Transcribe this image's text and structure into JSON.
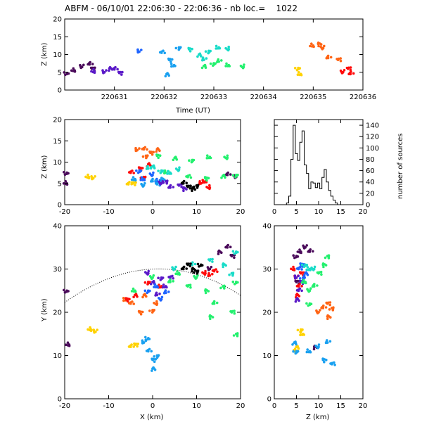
{
  "header": {
    "title": "ABFM - 06/10/01 22:06:30 - 22:06:36 - nb loc.=    1022"
  },
  "colors": {
    "black": "#000000",
    "dark_purple": "#4a0a5a",
    "purple": "#5a19c8",
    "blue": "#1e64ff",
    "sky": "#19a0f0",
    "cyan": "#19dcc8",
    "green": "#23f06e",
    "yellow": "#ffd200",
    "orange": "#ff6414",
    "red": "#ff0a0a"
  },
  "chart_data": [
    {
      "id": "time-height",
      "type": "scatter",
      "xlabel": "Time (UT)",
      "ylabel": "Z (km)",
      "xlim": [
        220630,
        220636
      ],
      "ylim": [
        0,
        20
      ],
      "xticks": [
        "220631",
        "220632",
        "220633",
        "220634",
        "220635",
        "220636"
      ],
      "yticks": [
        "0",
        "5",
        "10",
        "15",
        "20"
      ],
      "series": [
        {
          "color": "dark_purple",
          "points": [
            [
              220630.05,
              4.8
            ],
            [
              220630.2,
              5.5
            ],
            [
              220630.35,
              6.5
            ],
            [
              220630.5,
              7.2
            ],
            [
              220630.55,
              6.0
            ]
          ]
        },
        {
          "color": "purple",
          "points": [
            [
              220630.6,
              5.2
            ],
            [
              220630.8,
              5.0
            ],
            [
              220631.0,
              5.8
            ],
            [
              220631.1,
              4.8
            ],
            [
              220630.9,
              6.1
            ]
          ]
        },
        {
          "color": "blue",
          "points": [
            [
              220631.5,
              10.8
            ]
          ]
        },
        {
          "color": "sky",
          "points": [
            [
              220631.95,
              10.5
            ],
            [
              220632.1,
              8.5
            ],
            [
              220632.05,
              4.5
            ],
            [
              220632.3,
              12.0
            ],
            [
              220632.2,
              7.0
            ]
          ]
        },
        {
          "color": "cyan",
          "points": [
            [
              220632.5,
              11.5
            ],
            [
              220632.7,
              10.0
            ],
            [
              220632.9,
              11.0
            ],
            [
              220633.1,
              12.0
            ],
            [
              220633.3,
              11.5
            ],
            [
              220632.8,
              8.5
            ]
          ]
        },
        {
          "color": "green",
          "points": [
            [
              220632.8,
              6.8
            ],
            [
              220633.0,
              7.5
            ],
            [
              220633.3,
              7.0
            ],
            [
              220633.6,
              6.5
            ],
            [
              220633.1,
              8.0
            ]
          ]
        },
        {
          "color": "yellow",
          "points": [
            [
              220634.7,
              6.2
            ],
            [
              220634.75,
              4.5
            ]
          ]
        },
        {
          "color": "orange",
          "points": [
            [
              220635.0,
              12.5
            ],
            [
              220635.2,
              11.8
            ],
            [
              220635.3,
              9.0
            ],
            [
              220635.5,
              8.5
            ],
            [
              220635.1,
              13.0
            ]
          ]
        },
        {
          "color": "red",
          "points": [
            [
              220635.6,
              5.0
            ],
            [
              220635.75,
              4.5
            ],
            [
              220635.7,
              6.0
            ]
          ]
        }
      ]
    },
    {
      "id": "x-z",
      "type": "scatter",
      "ylabel": "Z (km)",
      "xlim": [
        -20,
        20
      ],
      "ylim": [
        0,
        20
      ],
      "xticks": [
        "-20",
        "-10",
        "0",
        "10",
        "20"
      ],
      "yticks": [
        "0",
        "5",
        "10",
        "15",
        "20"
      ],
      "series": [
        {
          "color": "dark_purple",
          "points": [
            [
              -19.5,
              7.5
            ],
            [
              -19.5,
              5.0
            ],
            [
              19,
              6.5
            ],
            [
              17,
              7.0
            ]
          ]
        },
        {
          "color": "yellow",
          "points": [
            [
              -14.5,
              6.5
            ],
            [
              -13.5,
              6.2
            ],
            [
              -5.5,
              4.8
            ],
            [
              -4.5,
              5.0
            ]
          ]
        },
        {
          "color": "orange",
          "points": [
            [
              -3.5,
              12.8
            ],
            [
              -2.0,
              13.0
            ],
            [
              -0.5,
              12.2
            ],
            [
              1.0,
              13.0
            ],
            [
              -1.5,
              11.5
            ]
          ]
        },
        {
          "color": "red",
          "points": [
            [
              -5,
              7.5
            ],
            [
              -3,
              8.5
            ],
            [
              -1,
              9.5
            ],
            [
              -2,
              6.5
            ],
            [
              12,
              5.5
            ],
            [
              13,
              4.0
            ],
            [
              11,
              5.0
            ]
          ]
        },
        {
          "color": "green",
          "points": [
            [
              1,
              11.5
            ],
            [
              5,
              11.0
            ],
            [
              9,
              10.5
            ],
            [
              13,
              11.2
            ],
            [
              17,
              11.0
            ],
            [
              3,
              7.5
            ],
            [
              8,
              6.5
            ],
            [
              12,
              6.2
            ],
            [
              16,
              6.8
            ],
            [
              19,
              7.0
            ]
          ]
        },
        {
          "color": "cyan",
          "points": [
            [
              0,
              9.0
            ],
            [
              2,
              8.0
            ],
            [
              4,
              7.5
            ],
            [
              6,
              8.2
            ],
            [
              -1,
              8.5
            ]
          ]
        },
        {
          "color": "blue",
          "points": [
            [
              -3,
              8.0
            ],
            [
              -2,
              6.0
            ],
            [
              0,
              7.0
            ],
            [
              1,
              5.5
            ]
          ]
        },
        {
          "color": "sky",
          "points": [
            [
              -4,
              6.0
            ],
            [
              -2,
              4.5
            ],
            [
              0,
              5.5
            ],
            [
              1,
              4.8
            ],
            [
              2,
              6.0
            ]
          ]
        },
        {
          "color": "purple",
          "points": [
            [
              2,
              5.0
            ],
            [
              4,
              4.0
            ],
            [
              6,
              4.5
            ],
            [
              7,
              3.8
            ],
            [
              3,
              5.5
            ]
          ]
        },
        {
          "color": "black",
          "points": [
            [
              7,
              5.0
            ],
            [
              8,
              4.2
            ],
            [
              9,
              3.8
            ],
            [
              10,
              4.5
            ]
          ]
        }
      ]
    },
    {
      "id": "height-histogram",
      "type": "bar",
      "ylabel": "number of sources",
      "xlim": [
        0,
        20
      ],
      "ylim": [
        0,
        150
      ],
      "xticks": [
        "0",
        "5",
        "10",
        "15",
        "20"
      ],
      "yticks": [
        "0",
        "20",
        "40",
        "60",
        "80",
        "100",
        "120",
        "140"
      ],
      "categories": [
        2.5,
        3,
        3.5,
        4,
        4.5,
        5,
        5.5,
        6,
        6.5,
        7,
        7.5,
        8,
        8.5,
        9,
        9.5,
        10,
        10.5,
        11,
        11.5,
        12,
        12.5,
        13,
        13.5,
        14,
        14.5
      ],
      "values": [
        0,
        3,
        15,
        80,
        140,
        90,
        78,
        110,
        130,
        70,
        55,
        28,
        40,
        38,
        30,
        38,
        28,
        48,
        62,
        40,
        25,
        15,
        8,
        3,
        0
      ]
    },
    {
      "id": "x-y",
      "type": "scatter",
      "xlabel": "X (km)",
      "ylabel": "Y (km)",
      "xlim": [
        -20,
        20
      ],
      "ylim": [
        0,
        40
      ],
      "xticks": [
        "-20",
        "-10",
        "0",
        "10",
        "20"
      ],
      "yticks": [
        "0",
        "10",
        "20",
        "30",
        "40"
      ],
      "series": [
        {
          "color": "dark_purple",
          "points": [
            [
              -19.5,
              25
            ],
            [
              -19.0,
              12.5
            ],
            [
              13,
              30
            ],
            [
              17,
              35
            ],
            [
              18,
              33
            ],
            [
              15,
              34
            ]
          ]
        },
        {
          "color": "yellow",
          "points": [
            [
              -14,
              16
            ],
            [
              -13,
              15.5
            ],
            [
              -5,
              12
            ],
            [
              -4,
              12.5
            ]
          ]
        },
        {
          "color": "sky",
          "points": [
            [
              -2,
              13
            ],
            [
              -1,
              11
            ],
            [
              0,
              9
            ],
            [
              0,
              7
            ],
            [
              1,
              10
            ],
            [
              -1,
              14
            ]
          ]
        },
        {
          "color": "orange",
          "points": [
            [
              -5,
              22
            ],
            [
              -3,
              20
            ],
            [
              -2,
              24
            ],
            [
              0,
              20.5
            ],
            [
              -6,
              23
            ],
            [
              1,
              22
            ]
          ]
        },
        {
          "color": "red",
          "points": [
            [
              -6,
              23
            ],
            [
              -4,
              24
            ],
            [
              -1,
              27
            ],
            [
              2,
              26
            ],
            [
              12,
              29
            ],
            [
              13,
              28.5
            ],
            [
              14,
              29.5
            ]
          ]
        },
        {
          "color": "purple",
          "points": [
            [
              0,
              27
            ],
            [
              2,
              28
            ],
            [
              3,
              26
            ],
            [
              -1,
              29
            ],
            [
              1,
              24
            ],
            [
              4,
              28
            ]
          ]
        },
        {
          "color": "blue",
          "points": [
            [
              -1,
              25
            ],
            [
              1,
              26
            ],
            [
              2,
              23
            ],
            [
              3,
              24.5
            ]
          ]
        },
        {
          "color": "green",
          "points": [
            [
              -4,
              25
            ],
            [
              0,
              28
            ],
            [
              4,
              27
            ],
            [
              8,
              26
            ],
            [
              12,
              25
            ],
            [
              16,
              26
            ],
            [
              19,
              27
            ],
            [
              6,
              29
            ],
            [
              10,
              28
            ],
            [
              14,
              22
            ],
            [
              18,
              20
            ],
            [
              13,
              19
            ],
            [
              19,
              15
            ]
          ]
        },
        {
          "color": "cyan",
          "points": [
            [
              5,
              30
            ],
            [
              9,
              31
            ],
            [
              13,
              32
            ],
            [
              16,
              31
            ],
            [
              18,
              29
            ],
            [
              19,
              34
            ]
          ]
        },
        {
          "color": "black",
          "points": [
            [
              7,
              30
            ],
            [
              8,
              31
            ],
            [
              9,
              30
            ],
            [
              10,
              29.5
            ],
            [
              11,
              31
            ]
          ]
        }
      ]
    },
    {
      "id": "z-y",
      "type": "scatter",
      "xlabel": "Z (km)",
      "xlim": [
        0,
        20
      ],
      "ylim": [
        0,
        40
      ],
      "xticks": [
        "0",
        "5",
        "10",
        "15",
        "20"
      ],
      "yticks": [
        "0",
        "10",
        "20",
        "30",
        "40"
      ],
      "series": [
        {
          "color": "dark_purple",
          "points": [
            [
              5,
              33
            ],
            [
              6,
              34
            ],
            [
              7,
              35
            ],
            [
              8,
              34
            ],
            [
              5,
              27
            ],
            [
              9,
              12
            ]
          ]
        },
        {
          "color": "red",
          "points": [
            [
              4.5,
              30
            ],
            [
              5,
              28
            ],
            [
              5.5,
              26
            ],
            [
              6,
              29
            ],
            [
              5,
              24
            ]
          ]
        },
        {
          "color": "purple",
          "points": [
            [
              5,
              28
            ],
            [
              5.5,
              25
            ],
            [
              6,
              27
            ],
            [
              5,
              23
            ]
          ]
        },
        {
          "color": "blue",
          "points": [
            [
              5.5,
              30
            ],
            [
              6,
              31
            ],
            [
              7,
              29
            ],
            [
              6.5,
              28
            ]
          ]
        },
        {
          "color": "yellow",
          "points": [
            [
              4.5,
              11
            ],
            [
              5,
              12
            ],
            [
              6,
              16
            ],
            [
              6.5,
              15
            ]
          ]
        },
        {
          "color": "sky",
          "points": [
            [
              4.5,
              13
            ],
            [
              5,
              11
            ],
            [
              8,
              11
            ],
            [
              10,
              12
            ],
            [
              12,
              13
            ],
            [
              13,
              8
            ],
            [
              11,
              9
            ]
          ]
        },
        {
          "color": "cyan",
          "points": [
            [
              7,
              31
            ],
            [
              8,
              30
            ],
            [
              9,
              30
            ]
          ]
        },
        {
          "color": "green",
          "points": [
            [
              7,
              27
            ],
            [
              8,
              25
            ],
            [
              9,
              26
            ],
            [
              10,
              29
            ],
            [
              11,
              31
            ],
            [
              12,
              33
            ],
            [
              8,
              22
            ]
          ]
        },
        {
          "color": "orange",
          "points": [
            [
              10,
              20
            ],
            [
              11,
              21
            ],
            [
              12,
              22
            ],
            [
              12,
              19
            ],
            [
              13,
              21
            ]
          ]
        }
      ]
    }
  ]
}
